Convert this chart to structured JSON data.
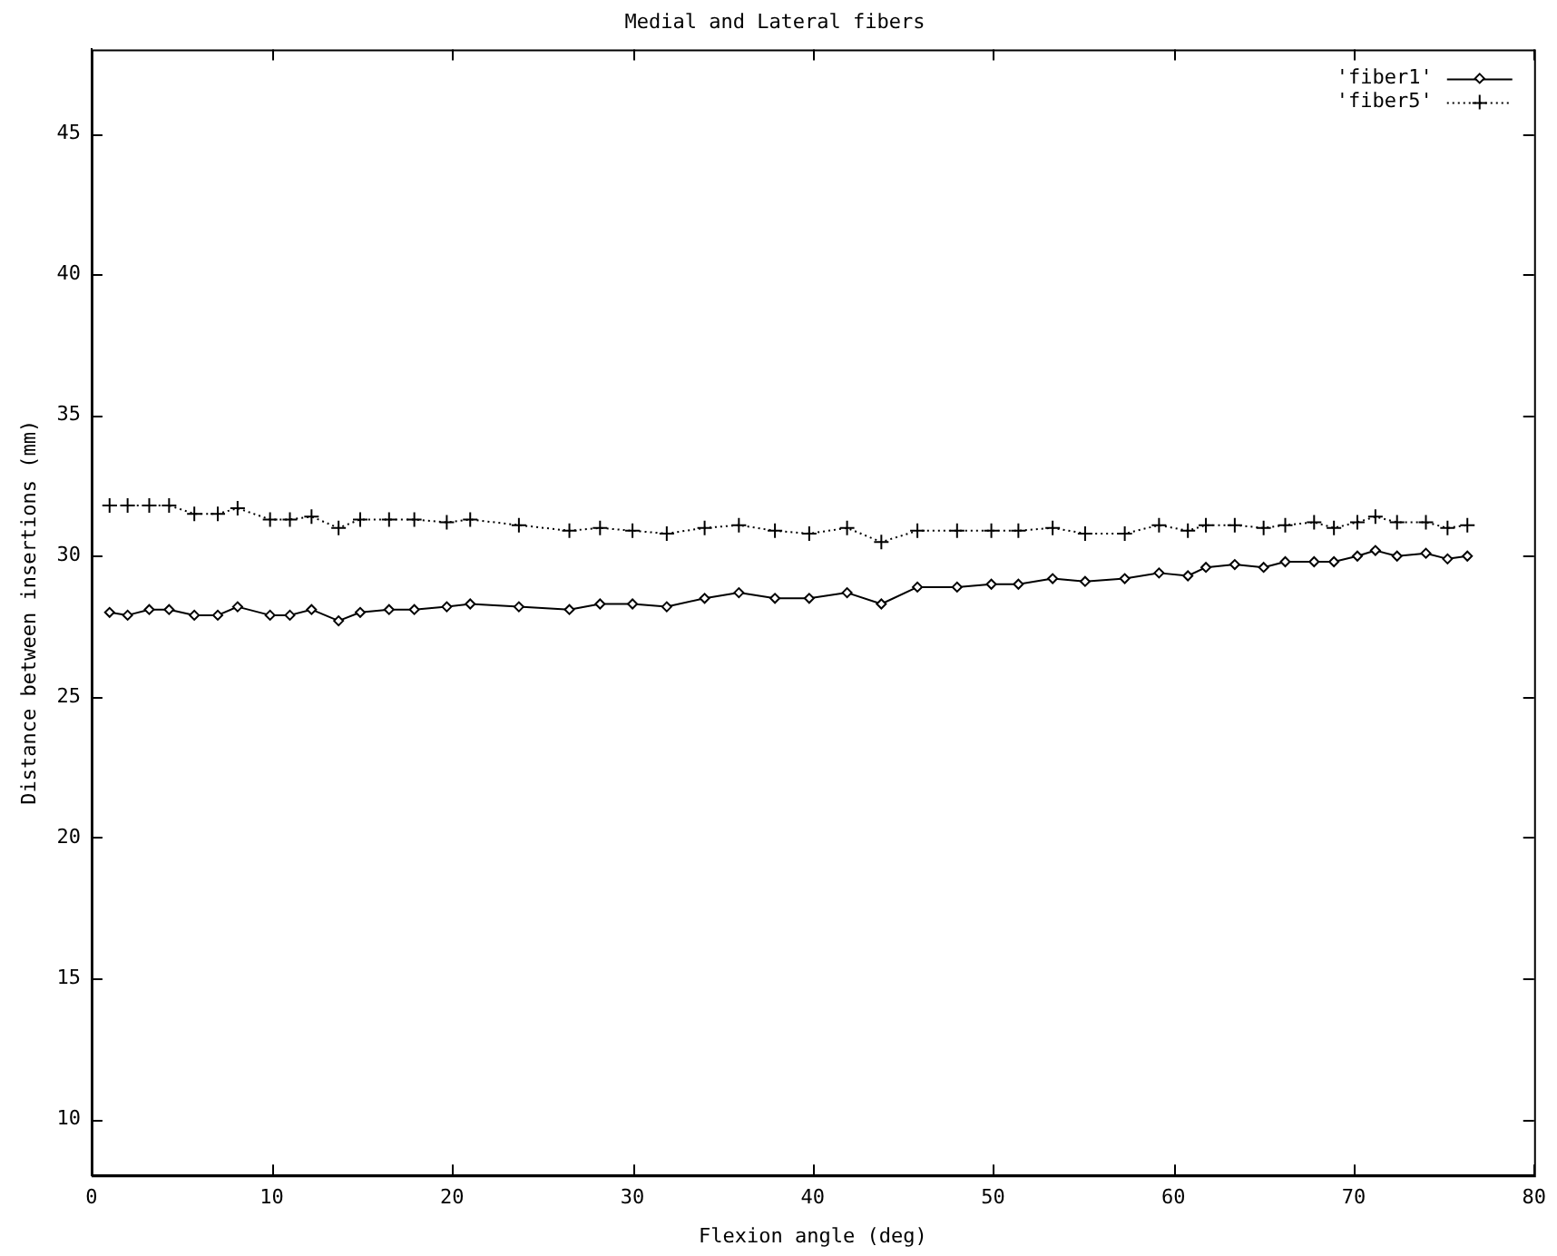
{
  "chart_data": {
    "type": "line",
    "title": "Medial and Lateral fibers",
    "xlabel": "Flexion angle (deg)",
    "ylabel": "Distance between insertions (mm)",
    "x": [
      1.0,
      2.0,
      3.2,
      4.3,
      5.7,
      7.0,
      8.1,
      9.9,
      11.0,
      12.2,
      13.7,
      14.9,
      16.5,
      17.9,
      19.7,
      21.0,
      23.7,
      26.5,
      28.2,
      30.0,
      31.9,
      34.0,
      35.9,
      37.9,
      39.8,
      41.9,
      43.8,
      45.8,
      48.0,
      49.9,
      51.4,
      53.3,
      55.1,
      57.3,
      59.2,
      60.8,
      61.8,
      63.4,
      65.0,
      66.2,
      67.8,
      68.9,
      70.2,
      71.2,
      72.4,
      74.0,
      75.2,
      76.3
    ],
    "series": [
      {
        "name": "'fiber1'",
        "color": "#000000",
        "marker": "diamond",
        "line_style": "solid",
        "values": [
          28.0,
          27.9,
          28.1,
          28.1,
          27.9,
          27.9,
          28.2,
          27.9,
          27.9,
          28.1,
          27.7,
          28.0,
          28.1,
          28.1,
          28.2,
          28.3,
          28.2,
          28.1,
          28.3,
          28.3,
          28.2,
          28.5,
          28.7,
          28.5,
          28.5,
          28.7,
          28.3,
          28.9,
          28.9,
          29.0,
          29.0,
          29.2,
          29.1,
          29.2,
          29.4,
          29.3,
          29.6,
          29.7,
          29.6,
          29.8,
          29.8,
          29.8,
          30.0,
          30.2,
          30.0,
          30.1,
          29.9,
          30.0
        ]
      },
      {
        "name": "'fiber5'",
        "color": "#000000",
        "marker": "cross",
        "line_style": "dotted",
        "values": [
          31.8,
          31.8,
          31.8,
          31.8,
          31.5,
          31.5,
          31.7,
          31.3,
          31.3,
          31.4,
          31.0,
          31.3,
          31.3,
          31.3,
          31.2,
          31.3,
          31.1,
          30.9,
          31.0,
          30.9,
          30.8,
          31.0,
          31.1,
          30.9,
          30.8,
          31.0,
          30.5,
          30.9,
          30.9,
          30.9,
          30.9,
          31.0,
          30.8,
          30.8,
          31.1,
          30.9,
          31.1,
          31.1,
          31.0,
          31.1,
          31.2,
          31.0,
          31.2,
          31.4,
          31.2,
          31.2,
          31.0,
          31.1
        ]
      }
    ],
    "xlim": [
      0,
      80
    ],
    "xticks": [
      0,
      10,
      20,
      30,
      40,
      50,
      60,
      70,
      80
    ],
    "ylim": [
      8,
      48
    ],
    "yticks": [
      10,
      15,
      20,
      25,
      30,
      35,
      40,
      45
    ],
    "grid": false,
    "legend": "top right"
  }
}
